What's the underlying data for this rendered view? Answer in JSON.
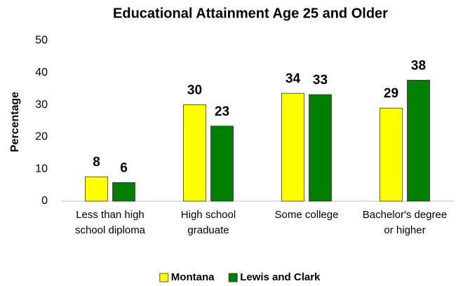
{
  "chart_data": {
    "type": "bar",
    "title": "Educational Attainment Age 25 and Older",
    "y_label": "Percentage",
    "categories": [
      "Less than high school diploma",
      "High school graduate",
      "Some college",
      "Bachelor's degree or higher"
    ],
    "series": [
      {
        "name": "Montana",
        "color": "#ffff00",
        "values": [
          7.6,
          30,
          33.6,
          29
        ],
        "value_labels": [
          "8",
          "30",
          "34",
          "29"
        ]
      },
      {
        "name": "Lewis and Clark",
        "color": "#008000",
        "values": [
          5.8,
          23.4,
          33.2,
          37.7
        ],
        "value_labels": [
          "6",
          "23",
          "33",
          "38"
        ]
      }
    ],
    "ylim": [
      0,
      50
    ],
    "yticks": [
      0,
      10,
      20,
      30,
      40,
      50
    ],
    "grid": false,
    "legend": "bottom"
  }
}
